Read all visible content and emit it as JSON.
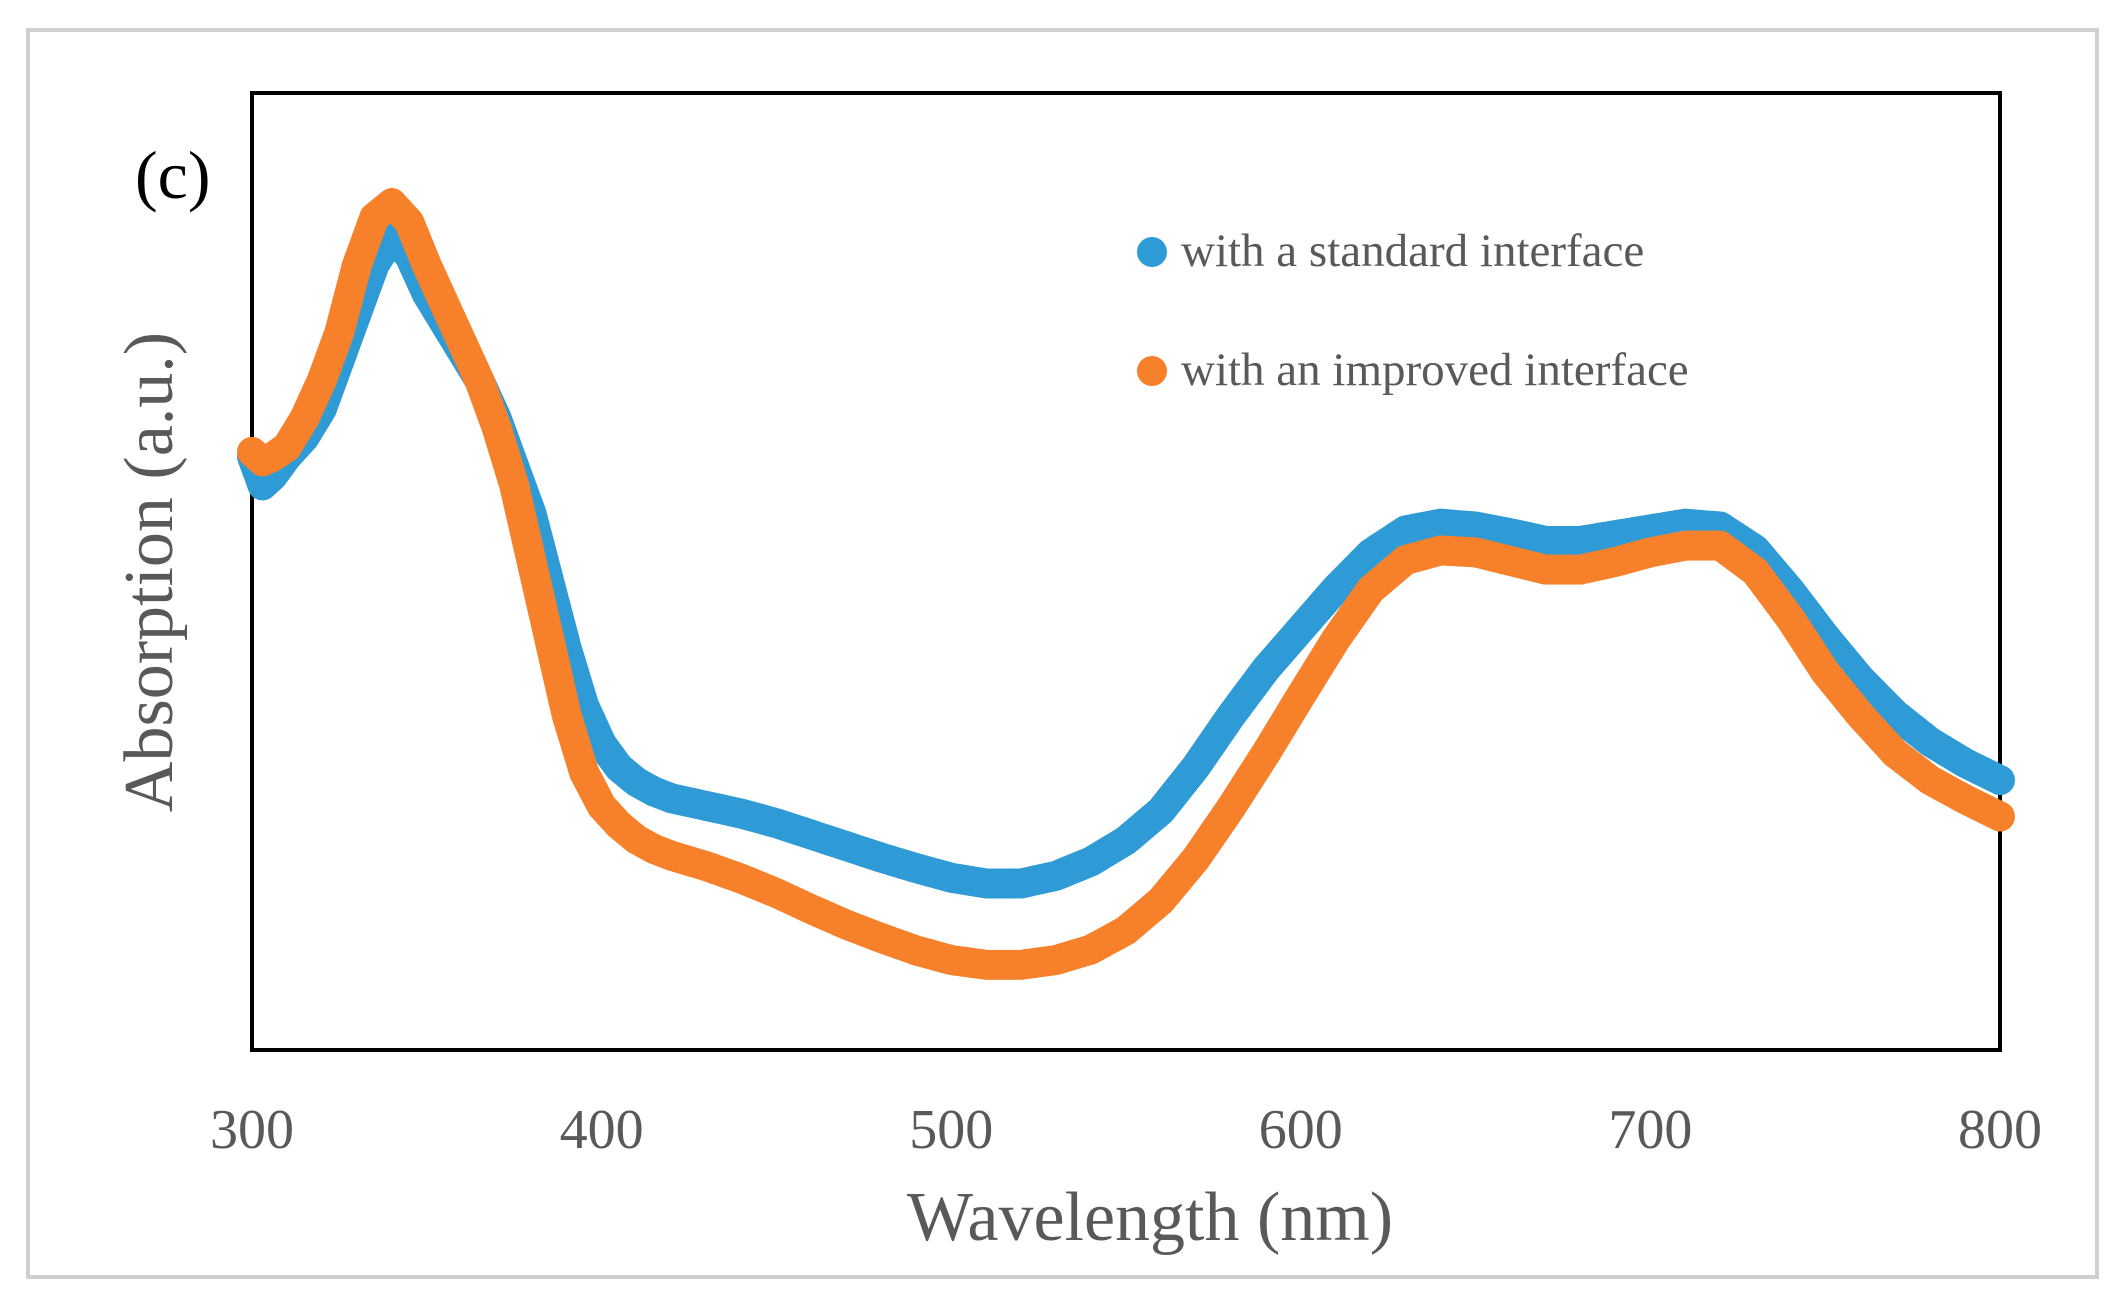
{
  "panel_label": "(c)",
  "chart_data": {
    "type": "scatter",
    "xlabel": "Wavelength (nm)",
    "ylabel": "Absorption (a.u.)",
    "xlim": [
      300,
      800
    ],
    "ylim": [
      0,
      1
    ],
    "x_ticks": [
      300,
      400,
      500,
      600,
      700,
      800
    ],
    "y_ticks": [],
    "grid": false,
    "legend_position": "top-right",
    "series": [
      {
        "name": "with a standard interface",
        "color": "#2E9BD6",
        "x": [
          300,
          303,
          306,
          310,
          315,
          320,
          325,
          330,
          335,
          340,
          345,
          350,
          355,
          360,
          365,
          370,
          375,
          380,
          385,
          390,
          395,
          400,
          405,
          410,
          415,
          420,
          430,
          440,
          450,
          460,
          470,
          480,
          490,
          500,
          510,
          520,
          530,
          540,
          550,
          560,
          570,
          580,
          590,
          600,
          610,
          620,
          630,
          640,
          650,
          660,
          670,
          680,
          690,
          700,
          710,
          720,
          730,
          740,
          750,
          760,
          770,
          780,
          790,
          800
        ],
        "y": [
          0.62,
          0.59,
          0.6,
          0.62,
          0.64,
          0.67,
          0.72,
          0.77,
          0.82,
          0.85,
          0.83,
          0.79,
          0.76,
          0.73,
          0.7,
          0.66,
          0.61,
          0.56,
          0.49,
          0.42,
          0.36,
          0.32,
          0.295,
          0.28,
          0.27,
          0.263,
          0.255,
          0.247,
          0.237,
          0.225,
          0.213,
          0.201,
          0.19,
          0.18,
          0.174,
          0.174,
          0.182,
          0.197,
          0.219,
          0.25,
          0.296,
          0.349,
          0.398,
          0.44,
          0.482,
          0.519,
          0.543,
          0.55,
          0.547,
          0.54,
          0.532,
          0.532,
          0.538,
          0.544,
          0.55,
          0.547,
          0.523,
          0.48,
          0.432,
          0.388,
          0.351,
          0.322,
          0.3,
          0.282
        ]
      },
      {
        "name": "with an improved interface",
        "color": "#F7802B",
        "x": [
          300,
          303,
          306,
          310,
          315,
          320,
          325,
          330,
          335,
          340,
          345,
          350,
          355,
          360,
          365,
          370,
          375,
          380,
          385,
          390,
          395,
          400,
          405,
          410,
          415,
          420,
          430,
          440,
          450,
          460,
          470,
          480,
          490,
          500,
          510,
          520,
          530,
          540,
          550,
          560,
          570,
          580,
          590,
          600,
          610,
          620,
          630,
          640,
          650,
          660,
          670,
          680,
          690,
          700,
          710,
          720,
          730,
          740,
          750,
          760,
          770,
          780,
          790,
          800
        ],
        "y": [
          0.625,
          0.615,
          0.62,
          0.63,
          0.66,
          0.7,
          0.75,
          0.82,
          0.87,
          0.885,
          0.865,
          0.82,
          0.78,
          0.74,
          0.7,
          0.65,
          0.59,
          0.51,
          0.43,
          0.35,
          0.29,
          0.255,
          0.235,
          0.22,
          0.21,
          0.203,
          0.192,
          0.179,
          0.164,
          0.147,
          0.131,
          0.117,
          0.104,
          0.094,
          0.089,
          0.089,
          0.094,
          0.105,
          0.125,
          0.156,
          0.2,
          0.253,
          0.31,
          0.37,
          0.429,
          0.481,
          0.512,
          0.522,
          0.52,
          0.511,
          0.502,
          0.502,
          0.51,
          0.52,
          0.527,
          0.527,
          0.5,
          0.451,
          0.395,
          0.35,
          0.31,
          0.282,
          0.262,
          0.244
        ]
      }
    ]
  }
}
